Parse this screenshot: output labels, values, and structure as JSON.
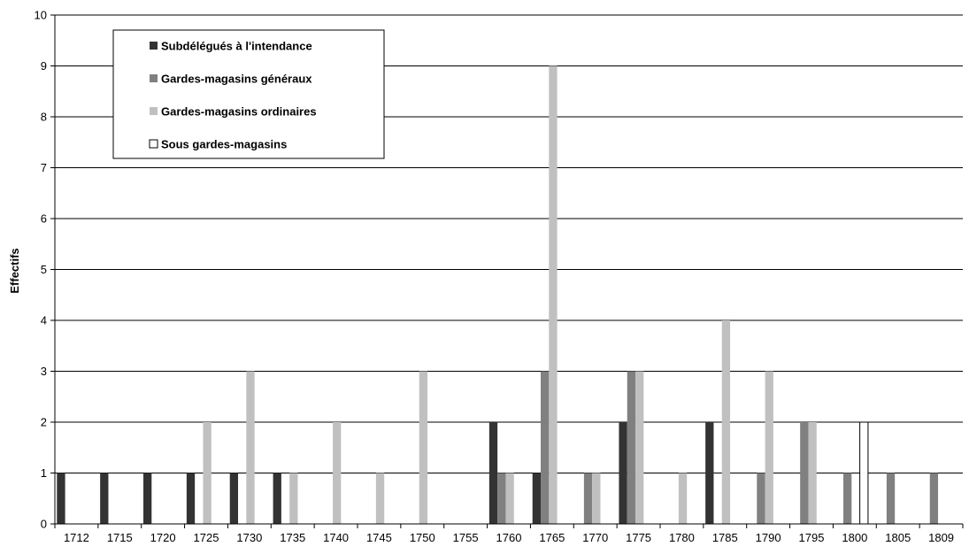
{
  "chart_data": {
    "type": "bar",
    "title": "",
    "xlabel": "",
    "ylabel": "Effectifs",
    "ylim": [
      0,
      10
    ],
    "yticks": [
      0,
      1,
      2,
      3,
      4,
      5,
      6,
      7,
      8,
      9,
      10
    ],
    "grid": true,
    "legend_position": "top-left",
    "categories": [
      "1712",
      "1715",
      "1720",
      "1725",
      "1730",
      "1735",
      "1740",
      "1745",
      "1750",
      "1755",
      "1760",
      "1765",
      "1770",
      "1775",
      "1780",
      "1785",
      "1790",
      "1795",
      "1800",
      "1805",
      "1809"
    ],
    "series": [
      {
        "name": "Subdélégués à l'intendance",
        "color": "#333333",
        "values": [
          1,
          1,
          1,
          1,
          1,
          1,
          0,
          0,
          0,
          0,
          2,
          1,
          0,
          2,
          0,
          2,
          0,
          0,
          0,
          0,
          0
        ]
      },
      {
        "name": "Gardes-magasins généraux",
        "color": "#808080",
        "values": [
          0,
          0,
          0,
          0,
          0,
          0,
          0,
          0,
          0,
          0,
          1,
          3,
          1,
          3,
          0,
          0,
          1,
          2,
          1,
          1,
          1
        ]
      },
      {
        "name": "Gardes-magasins ordinaires",
        "color": "#c0c0c0",
        "values": [
          0,
          0,
          0,
          2,
          3,
          1,
          2,
          1,
          3,
          0,
          1,
          9,
          1,
          3,
          1,
          4,
          3,
          2,
          0,
          0,
          0
        ]
      },
      {
        "name": "Sous gardes-magasins",
        "color": "#ffffff",
        "values": [
          0,
          0,
          0,
          0,
          0,
          0,
          0,
          0,
          0,
          0,
          0,
          0,
          0,
          0,
          0,
          0,
          0,
          0,
          2,
          0,
          0
        ]
      }
    ]
  }
}
